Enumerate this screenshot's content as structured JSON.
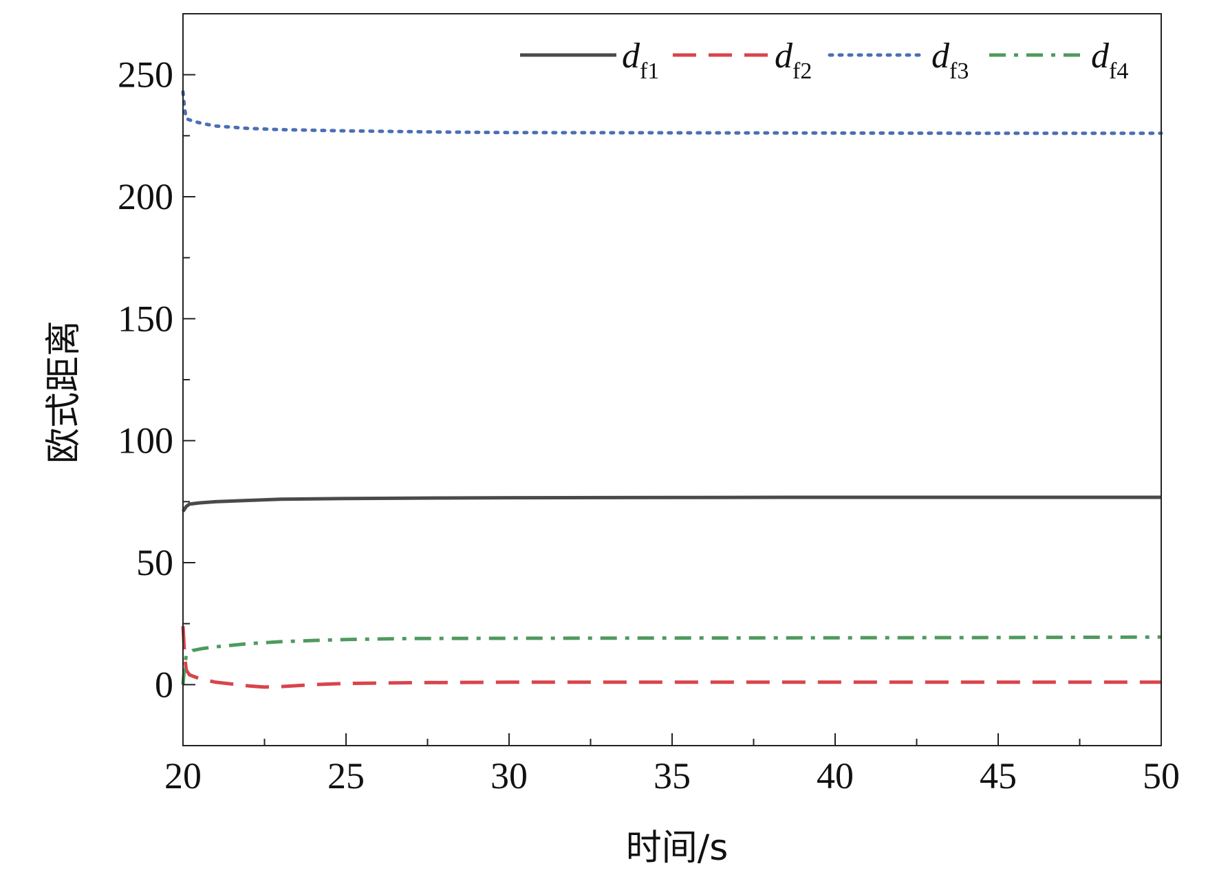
{
  "chart_data": {
    "type": "line",
    "xlabel": "时间/s",
    "ylabel": "欧式距离",
    "xlim": [
      20,
      50
    ],
    "ylim": [
      -25,
      275
    ],
    "xticks": [
      "20",
      "25",
      "30",
      "35",
      "40",
      "45",
      "50"
    ],
    "yticks": [
      "0",
      "50",
      "100",
      "150",
      "200",
      "250"
    ],
    "grid": false,
    "legend_position": "top-right",
    "series": [
      {
        "name": "df1",
        "legend_main": "d",
        "legend_sub": "f1",
        "color": "#4a4a4a",
        "style": "solid",
        "x": [
          20,
          20.1,
          20.2,
          20.5,
          21,
          22,
          23,
          25,
          28,
          30,
          35,
          40,
          45,
          50
        ],
        "y": [
          71,
          73,
          74,
          74.5,
          75,
          75.5,
          76,
          76.3,
          76.5,
          76.6,
          76.7,
          76.8,
          76.8,
          76.8
        ]
      },
      {
        "name": "df2",
        "legend_main": "d",
        "legend_sub": "f2",
        "color": "#d9444b",
        "style": "dashed",
        "x": [
          20,
          20.05,
          20.1,
          20.2,
          20.5,
          21,
          22,
          22.5,
          23,
          24,
          25,
          27,
          30,
          35,
          40,
          45,
          50
        ],
        "y": [
          24,
          12,
          6,
          4,
          2.5,
          1,
          -0.5,
          -1,
          -0.8,
          0,
          0.5,
          0.8,
          1,
          1,
          1,
          1,
          1
        ]
      },
      {
        "name": "df3",
        "legend_main": "d",
        "legend_sub": "f3",
        "color": "#4a6fb5",
        "style": "dotted",
        "x": [
          20,
          20.05,
          20.1,
          20.3,
          20.6,
          21,
          22,
          23,
          25,
          28,
          30,
          35,
          40,
          45,
          50
        ],
        "y": [
          243,
          236,
          232,
          231,
          230,
          229,
          228,
          227.5,
          227,
          226.5,
          226.3,
          226.2,
          226.1,
          226,
          226
        ]
      },
      {
        "name": "df4",
        "legend_main": "d",
        "legend_sub": "f4",
        "color": "#4f9a5e",
        "style": "dashdot",
        "x": [
          20,
          20.05,
          20.1,
          20.3,
          20.6,
          21,
          22,
          23,
          24,
          25,
          27,
          30,
          35,
          40,
          45,
          50
        ],
        "y": [
          0,
          8,
          12,
          14,
          14.8,
          15.5,
          16.8,
          17.6,
          18.1,
          18.5,
          18.9,
          19,
          19.1,
          19.2,
          19.3,
          19.5
        ]
      }
    ]
  }
}
